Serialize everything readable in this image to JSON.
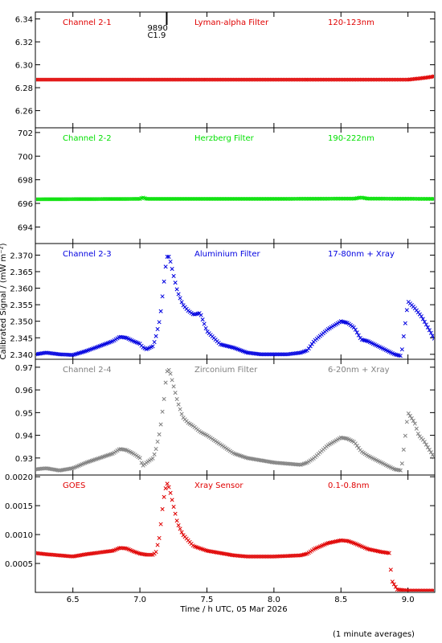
{
  "chart_data": {
    "type": "scatter",
    "x_range": [
      6.22,
      9.2
    ],
    "x_ticks": [
      6.5,
      7.0,
      7.5,
      8.0,
      8.5,
      9.0
    ],
    "x_tick_labels": [
      "6.5",
      "7.0",
      "7.5",
      "8.0",
      "8.5",
      "9.0"
    ],
    "xlabel": "Time / h UTC, 05 Mar 2026",
    "ylabel": "Calibrated Signal / (mW m⁻²)",
    "footnote": "(1 minute averages)",
    "panels": [
      {
        "channel": "Channel 2-1",
        "filter": "Lyman-alpha Filter",
        "band": "120-123nm",
        "color": "#e00000",
        "ylim": [
          6.245,
          6.346
        ],
        "yticks": [
          6.26,
          6.28,
          6.3,
          6.32,
          6.34
        ],
        "ytick_labels": [
          "6.26",
          "6.28",
          "6.30",
          "6.32",
          "6.34"
        ],
        "flare_marker": {
          "x": 7.2,
          "labels": [
            "9890",
            "C1.9"
          ]
        },
        "series": [
          [
            6.22,
            6.287
          ],
          [
            7.5,
            6.287
          ],
          [
            8.0,
            6.287
          ],
          [
            8.5,
            6.287
          ],
          [
            9.0,
            6.287
          ],
          [
            9.08,
            6.288
          ],
          [
            9.15,
            6.289
          ],
          [
            9.2,
            6.29
          ]
        ]
      },
      {
        "channel": "Channel 2-2",
        "filter": "Herzberg Filter",
        "band": "190-222nm",
        "color": "#00e000",
        "ylim": [
          692.6,
          702.4
        ],
        "yticks": [
          694,
          696,
          698,
          700,
          702
        ],
        "ytick_labels": [
          "694",
          "696",
          "698",
          "700",
          "702"
        ],
        "series": [
          [
            6.22,
            696.35
          ],
          [
            7.0,
            696.38
          ],
          [
            7.02,
            696.5
          ],
          [
            7.05,
            696.38
          ],
          [
            8.0,
            696.38
          ],
          [
            8.6,
            696.4
          ],
          [
            8.65,
            696.5
          ],
          [
            8.7,
            696.4
          ],
          [
            9.2,
            696.38
          ]
        ]
      },
      {
        "channel": "Channel 2-3",
        "filter": "Aluminium Filter",
        "band": "17-80nm + Xray",
        "color": "#0000e0",
        "ylim": [
          2.3385,
          2.3735
        ],
        "yticks": [
          2.34,
          2.345,
          2.35,
          2.355,
          2.36,
          2.365,
          2.37
        ],
        "ytick_labels": [
          "2.340",
          "2.345",
          "2.350",
          "2.355",
          "2.360",
          "2.365",
          "2.370"
        ],
        "series": [
          [
            6.22,
            2.34
          ],
          [
            6.3,
            2.3405
          ],
          [
            6.4,
            2.34
          ],
          [
            6.5,
            2.3398
          ],
          [
            6.6,
            2.341
          ],
          [
            6.7,
            2.3425
          ],
          [
            6.8,
            2.344
          ],
          [
            6.85,
            2.3453
          ],
          [
            6.9,
            2.345
          ],
          [
            6.95,
            2.344
          ],
          [
            7.0,
            2.3432
          ],
          [
            7.02,
            2.3422
          ],
          [
            7.05,
            2.3415
          ],
          [
            7.1,
            2.3425
          ],
          [
            7.12,
            2.3455
          ],
          [
            7.15,
            2.3508
          ],
          [
            7.18,
            2.362
          ],
          [
            7.2,
            2.3695
          ],
          [
            7.22,
            2.3695
          ],
          [
            7.25,
            2.364
          ],
          [
            7.28,
            2.359
          ],
          [
            7.32,
            2.355
          ],
          [
            7.36,
            2.3532
          ],
          [
            7.4,
            2.352
          ],
          [
            7.45,
            2.3525
          ],
          [
            7.5,
            2.347
          ],
          [
            7.6,
            2.343
          ],
          [
            7.7,
            2.342
          ],
          [
            7.8,
            2.3405
          ],
          [
            7.9,
            2.34
          ],
          [
            8.0,
            2.34
          ],
          [
            8.1,
            2.34
          ],
          [
            8.2,
            2.3405
          ],
          [
            8.25,
            2.3412
          ],
          [
            8.3,
            2.344
          ],
          [
            8.4,
            2.3475
          ],
          [
            8.5,
            2.35
          ],
          [
            8.55,
            2.3495
          ],
          [
            8.6,
            2.348
          ],
          [
            8.65,
            2.3445
          ],
          [
            8.7,
            2.344
          ],
          [
            8.8,
            2.342
          ],
          [
            8.9,
            2.34
          ],
          [
            8.95,
            2.3395
          ],
          [
            9.0,
            2.356
          ],
          [
            9.05,
            2.354
          ],
          [
            9.1,
            2.3515
          ],
          [
            9.15,
            2.348
          ],
          [
            9.2,
            2.3445
          ]
        ]
      },
      {
        "channel": "Channel 2-4",
        "filter": "Zirconium Filter",
        "band": "6-20nm + Xray",
        "color": "#808080",
        "ylim": [
          0.9225,
          0.9735
        ],
        "yticks": [
          0.93,
          0.94,
          0.95,
          0.96,
          0.97
        ],
        "ytick_labels": [
          "0.93",
          "0.94",
          "0.95",
          "0.96",
          "0.97"
        ],
        "series": [
          [
            6.22,
            0.925
          ],
          [
            6.3,
            0.9255
          ],
          [
            6.4,
            0.9245
          ],
          [
            6.5,
            0.9255
          ],
          [
            6.6,
            0.928
          ],
          [
            6.7,
            0.93
          ],
          [
            6.8,
            0.932
          ],
          [
            6.85,
            0.934
          ],
          [
            6.9,
            0.9335
          ],
          [
            6.95,
            0.932
          ],
          [
            7.0,
            0.93
          ],
          [
            7.02,
            0.9265
          ],
          [
            7.05,
            0.928
          ],
          [
            7.1,
            0.93
          ],
          [
            7.12,
            0.934
          ],
          [
            7.15,
            0.942
          ],
          [
            7.18,
            0.956
          ],
          [
            7.2,
            0.968
          ],
          [
            7.22,
            0.969
          ],
          [
            7.25,
            0.962
          ],
          [
            7.28,
            0.955
          ],
          [
            7.32,
            0.948
          ],
          [
            7.36,
            0.9455
          ],
          [
            7.4,
            0.944
          ],
          [
            7.45,
            0.9415
          ],
          [
            7.5,
            0.94
          ],
          [
            7.6,
            0.936
          ],
          [
            7.7,
            0.932
          ],
          [
            7.8,
            0.93
          ],
          [
            7.9,
            0.929
          ],
          [
            8.0,
            0.928
          ],
          [
            8.1,
            0.9275
          ],
          [
            8.2,
            0.927
          ],
          [
            8.25,
            0.928
          ],
          [
            8.3,
            0.93
          ],
          [
            8.4,
            0.9355
          ],
          [
            8.5,
            0.939
          ],
          [
            8.55,
            0.9385
          ],
          [
            8.6,
            0.937
          ],
          [
            8.65,
            0.933
          ],
          [
            8.7,
            0.931
          ],
          [
            8.8,
            0.928
          ],
          [
            8.9,
            0.925
          ],
          [
            8.95,
            0.9245
          ],
          [
            9.0,
            0.95
          ],
          [
            9.05,
            0.9455
          ],
          [
            9.08,
            0.94
          ],
          [
            9.12,
            0.9375
          ],
          [
            9.15,
            0.9345
          ],
          [
            9.2,
            0.93
          ]
        ]
      },
      {
        "channel": "GOES",
        "filter": "Xray Sensor",
        "band": "0.1-0.8nm",
        "color": "#e00000",
        "ylim": [
          0.0,
          0.00203
        ],
        "yticks": [
          0.0005,
          0.001,
          0.0015,
          0.002
        ],
        "ytick_labels": [
          "0.0005",
          "0.0010",
          "0.0015",
          "0.0020"
        ],
        "series": [
          [
            6.22,
            0.00068
          ],
          [
            6.3,
            0.00066
          ],
          [
            6.4,
            0.00064
          ],
          [
            6.5,
            0.00062
          ],
          [
            6.6,
            0.00066
          ],
          [
            6.7,
            0.00069
          ],
          [
            6.8,
            0.00072
          ],
          [
            6.85,
            0.00077
          ],
          [
            6.9,
            0.00076
          ],
          [
            6.95,
            0.00071
          ],
          [
            7.0,
            0.00067
          ],
          [
            7.05,
            0.00065
          ],
          [
            7.1,
            0.00065
          ],
          [
            7.12,
            0.0007
          ],
          [
            7.15,
            0.001
          ],
          [
            7.16,
            0.0013
          ],
          [
            7.18,
            0.00165
          ],
          [
            7.2,
            0.0019
          ],
          [
            7.22,
            0.0018
          ],
          [
            7.25,
            0.0015
          ],
          [
            7.28,
            0.0012
          ],
          [
            7.32,
            0.001
          ],
          [
            7.36,
            0.0009
          ],
          [
            7.4,
            0.0008
          ],
          [
            7.5,
            0.00072
          ],
          [
            7.6,
            0.00068
          ],
          [
            7.7,
            0.00064
          ],
          [
            7.8,
            0.00062
          ],
          [
            7.9,
            0.00062
          ],
          [
            8.0,
            0.00062
          ],
          [
            8.1,
            0.00063
          ],
          [
            8.2,
            0.00064
          ],
          [
            8.25,
            0.00067
          ],
          [
            8.3,
            0.00075
          ],
          [
            8.4,
            0.00085
          ],
          [
            8.5,
            0.0009
          ],
          [
            8.55,
            0.00089
          ],
          [
            8.6,
            0.00085
          ],
          [
            8.7,
            0.00075
          ],
          [
            8.8,
            0.0007
          ],
          [
            8.86,
            0.00068
          ],
          [
            8.88,
            0.0002
          ],
          [
            8.92,
            5e-05
          ],
          [
            9.0,
            3e-05
          ],
          [
            9.1,
            3e-05
          ],
          [
            9.2,
            3e-05
          ]
        ]
      }
    ]
  }
}
